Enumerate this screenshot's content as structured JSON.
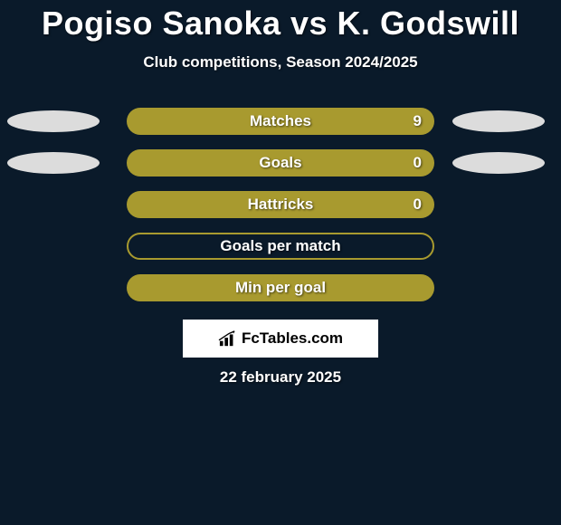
{
  "title": "Pogiso Sanoka vs K. Godswill",
  "subtitle": "Club competitions, Season 2024/2025",
  "stats": [
    {
      "label": "Matches",
      "value": "9",
      "filled": true,
      "showLeftEllipse": true,
      "showRightEllipse": true,
      "showValue": true
    },
    {
      "label": "Goals",
      "value": "0",
      "filled": true,
      "showLeftEllipse": true,
      "showRightEllipse": true,
      "showValue": true
    },
    {
      "label": "Hattricks",
      "value": "0",
      "filled": true,
      "showLeftEllipse": false,
      "showRightEllipse": false,
      "showValue": true
    },
    {
      "label": "Goals per match",
      "value": "",
      "filled": false,
      "showLeftEllipse": false,
      "showRightEllipse": false,
      "showValue": false
    },
    {
      "label": "Min per goal",
      "value": "",
      "filled": true,
      "showLeftEllipse": false,
      "showRightEllipse": false,
      "showValue": false
    }
  ],
  "logo_text": "FcTables.com",
  "date": "22 february 2025",
  "colors": {
    "background": "#0a1a2a",
    "bar_fill": "#a89a2f",
    "ellipse": "#dcdcdc",
    "text": "#ffffff",
    "logo_bg": "#ffffff",
    "logo_text": "#000000"
  }
}
